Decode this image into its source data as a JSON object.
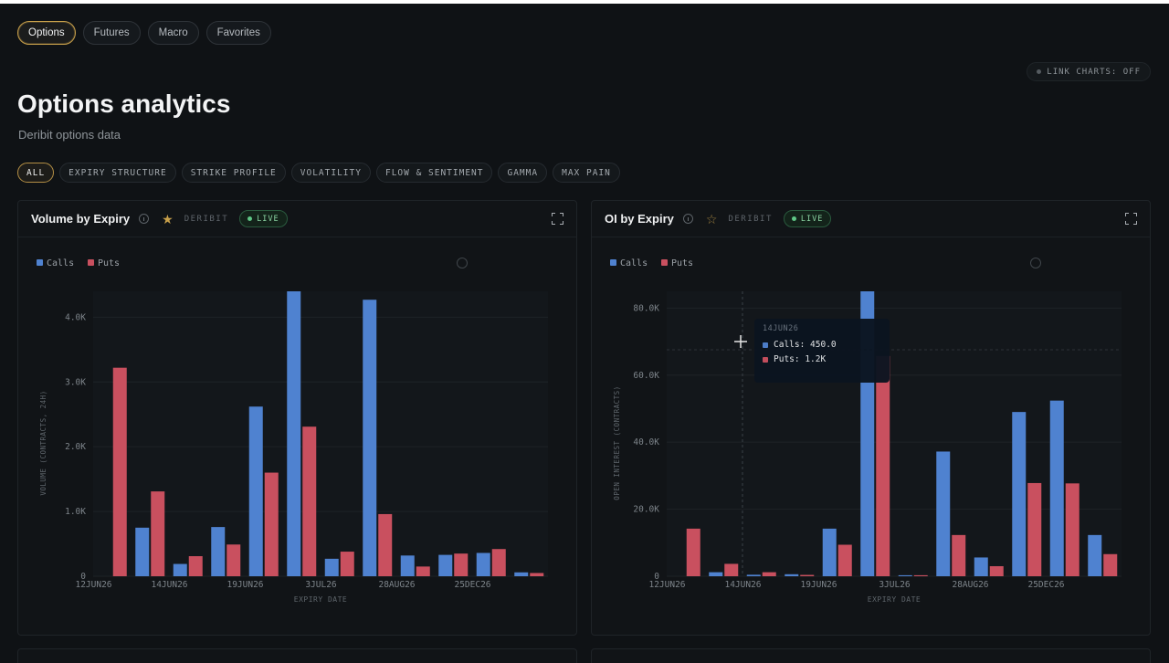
{
  "nav": {
    "tabs": [
      {
        "label": "Options",
        "active": true
      },
      {
        "label": "Futures",
        "active": false
      },
      {
        "label": "Macro",
        "active": false
      },
      {
        "label": "Favorites",
        "active": false
      }
    ]
  },
  "link_charts_label": "LINK CHARTS: OFF",
  "page": {
    "title": "Options analytics",
    "subtitle": "Deribit options data"
  },
  "filters": [
    {
      "label": "ALL",
      "active": true
    },
    {
      "label": "EXPIRY STRUCTURE",
      "active": false
    },
    {
      "label": "STRIKE PROFILE",
      "active": false
    },
    {
      "label": "VOLATILITY",
      "active": false
    },
    {
      "label": "FLOW & SENTIMENT",
      "active": false
    },
    {
      "label": "GAMMA",
      "active": false
    },
    {
      "label": "MAX PAIN",
      "active": false
    }
  ],
  "colors": {
    "calls": "#4f82d0",
    "puts": "#c9505f",
    "accent": "#c8a04a",
    "live": "#5fc786"
  },
  "panels": [
    {
      "title": "Volume by Expiry",
      "source": "DERIBIT",
      "live": "LIVE",
      "favorite": true
    },
    {
      "title": "OI by Expiry",
      "source": "DERIBIT",
      "live": "LIVE",
      "favorite": false,
      "tooltip": {
        "date": "14JUN26",
        "calls": "Calls: 450.0",
        "puts": "Puts: 1.2K"
      }
    }
  ],
  "chart_data": [
    {
      "type": "bar",
      "xlabel": "EXPIRY DATE",
      "ylabel": "VOLUME (CONTRACTS, 24H)",
      "ylim": [
        0,
        4400
      ],
      "yticks": [
        0,
        1000,
        2000,
        3000,
        4000
      ],
      "ytick_labels": [
        "0",
        "1.0K",
        "2.0K",
        "3.0K",
        "4.0K"
      ],
      "xtick_labels": [
        "12JUN26",
        "14JUN26",
        "19JUN26",
        "3JUL26",
        "28AUG26",
        "25DEC26"
      ],
      "xtick_positions": [
        0,
        2,
        4,
        6,
        8,
        10
      ],
      "legend": [
        "Calls",
        "Puts"
      ],
      "legend_position": "top-left",
      "series": [
        {
          "name": "Calls",
          "values": [
            0,
            750,
            190,
            760,
            2620,
            4400,
            270,
            4270,
            320,
            330,
            360,
            60
          ]
        },
        {
          "name": "Puts",
          "values": [
            3220,
            1310,
            310,
            490,
            1600,
            2310,
            380,
            960,
            150,
            350,
            420,
            50
          ]
        }
      ]
    },
    {
      "type": "bar",
      "xlabel": "EXPIRY DATE",
      "ylabel": "OPEN INTEREST (CONTRACTS)",
      "ylim": [
        0,
        85000
      ],
      "yticks": [
        0,
        20000,
        40000,
        60000,
        80000
      ],
      "ytick_labels": [
        "0",
        "20.0K",
        "40.0K",
        "60.0K",
        "80.0K"
      ],
      "xtick_labels": [
        "12JUN26",
        "14JUN26",
        "19JUN26",
        "3JUL26",
        "28AUG26",
        "25DEC26"
      ],
      "xtick_positions": [
        0,
        2,
        4,
        6,
        8,
        10
      ],
      "legend": [
        "Calls",
        "Puts"
      ],
      "legend_position": "top-left",
      "series": [
        {
          "name": "Calls",
          "values": [
            0,
            1200,
            450,
            600,
            14200,
            85000,
            300,
            37200,
            5600,
            49000,
            52400,
            12300
          ]
        },
        {
          "name": "Puts",
          "values": [
            14200,
            3700,
            1200,
            400,
            9400,
            65700,
            300,
            12300,
            3000,
            27800,
            27700,
            6600
          ]
        }
      ]
    }
  ]
}
